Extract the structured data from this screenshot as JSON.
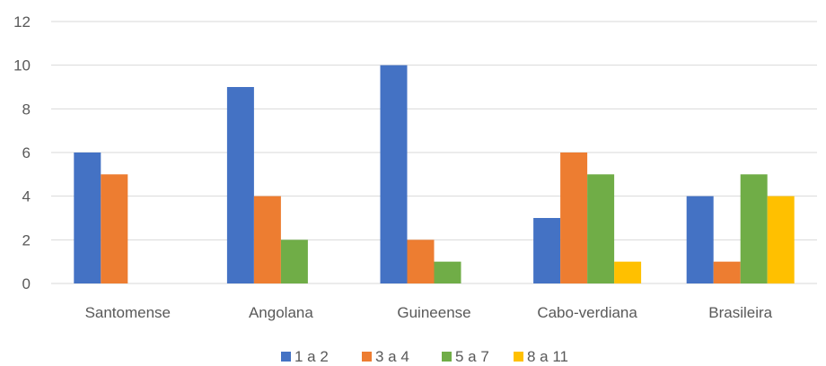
{
  "chart_data": {
    "type": "bar",
    "title": "",
    "xlabel": "",
    "ylabel": "",
    "categories": [
      "Santomense",
      "Angolana",
      "Guineense",
      "Cabo-verdiana",
      "Brasileira"
    ],
    "series": [
      {
        "name": "1 a 2",
        "color": "#4472C4",
        "values": [
          6,
          9,
          10,
          3,
          4
        ]
      },
      {
        "name": "3 a 4",
        "color": "#ED7D31",
        "values": [
          5,
          4,
          2,
          6,
          1
        ]
      },
      {
        "name": "5 a 7",
        "color": "#70AD47",
        "values": [
          0,
          2,
          1,
          5,
          5
        ]
      },
      {
        "name": "8 a 11",
        "color": "#FFC000",
        "values": [
          0,
          0,
          0,
          1,
          4
        ]
      }
    ],
    "ylim": [
      0,
      12
    ],
    "yticks": [
      0,
      2,
      4,
      6,
      8,
      10,
      12
    ],
    "grid": true,
    "legend_position": "bottom"
  }
}
